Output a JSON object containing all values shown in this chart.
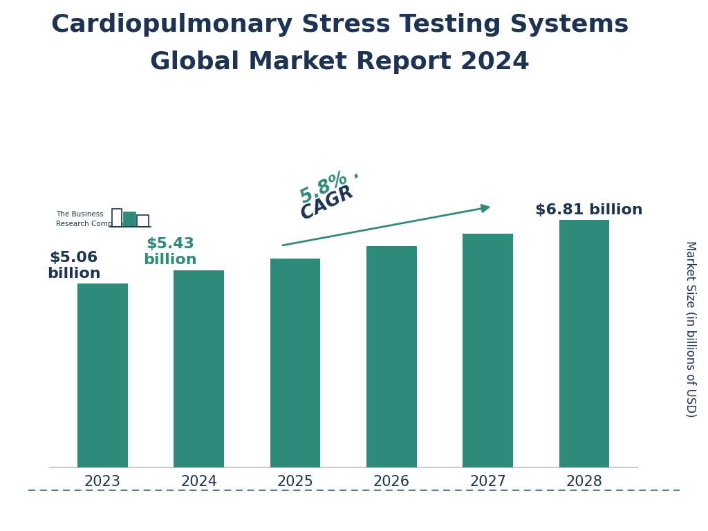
{
  "title_line1": "Cardiopulmonary Stress Testing Systems",
  "title_line2": "Global Market Report 2024",
  "title_fontsize": 26,
  "title_color": "#1c3354",
  "years": [
    "2023",
    "2024",
    "2025",
    "2026",
    "2027",
    "2028"
  ],
  "values": [
    5.06,
    5.43,
    5.75,
    6.08,
    6.43,
    6.81
  ],
  "bar_color": "#2e8b7a",
  "ylabel": "Market Size (in billions of USD)",
  "ylabel_fontsize": 12,
  "cagr_text_part1": "CAGR",
  "cagr_text_part2": " 5.8% .",
  "cagr_color": "#2e8b7a",
  "cagr_dark_color": "#1c3354",
  "cagr_fontsize": 19,
  "label_2023": "$5.06\nbillion",
  "label_2024": "$5.43\nbillion",
  "label_2028": "$6.81 billion",
  "label_color_2023": "#1c3354",
  "label_color_2024": "#2e8b7a",
  "label_color_2028": "#1c3354",
  "background_color": "#ffffff",
  "ylim_min": 4.2,
  "ylim_max": 7.6,
  "tick_color": "#1c3354",
  "tick_fontsize": 15,
  "label_fontsize": 16,
  "dashed_line_color": "#3a6b8a",
  "logo_color_teal": "#2e8b7a",
  "logo_color_dark": "#1c3354"
}
